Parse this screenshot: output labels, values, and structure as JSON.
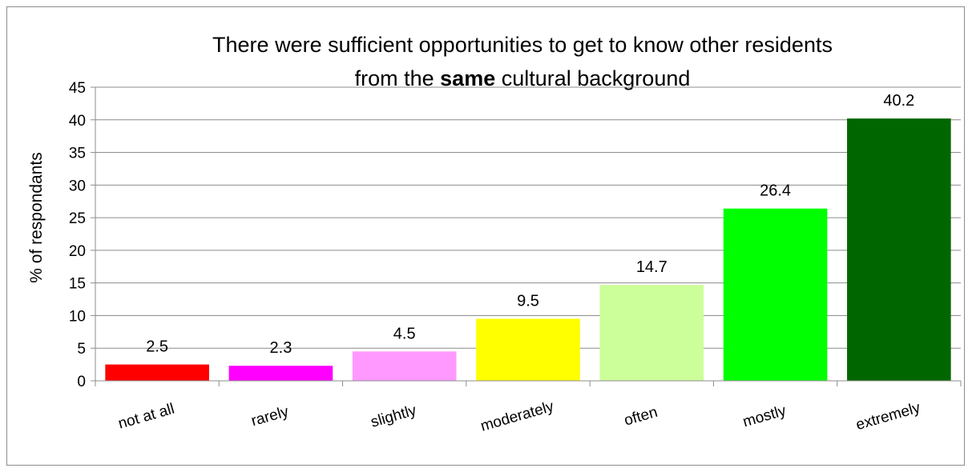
{
  "chart_data": {
    "type": "bar",
    "title": {
      "line1": "There were sufficient opportunities to get to know other residents",
      "line2_before": "from the ",
      "line2_bold": "same",
      "line2_after": " cultural background"
    },
    "xlabel": "",
    "ylabel": "% of respondants",
    "categories": [
      "not at all",
      "rarely",
      "slightly",
      "moderately",
      "often",
      "mostly",
      "extremely"
    ],
    "values": [
      2.5,
      2.3,
      4.5,
      9.5,
      14.7,
      26.4,
      40.2
    ],
    "data_labels": [
      "2.5",
      "2.3",
      "4.5",
      "9.5",
      "14.7",
      "26.4",
      "40.2"
    ],
    "colors": [
      "#ff0000",
      "#ff00ff",
      "#ff99ff",
      "#ffff00",
      "#ccff99",
      "#00ff00",
      "#006600"
    ],
    "ylim": [
      0,
      45
    ],
    "yticks": [
      0,
      5,
      10,
      15,
      20,
      25,
      30,
      35,
      40,
      45
    ],
    "grid": true,
    "legend": "none"
  }
}
